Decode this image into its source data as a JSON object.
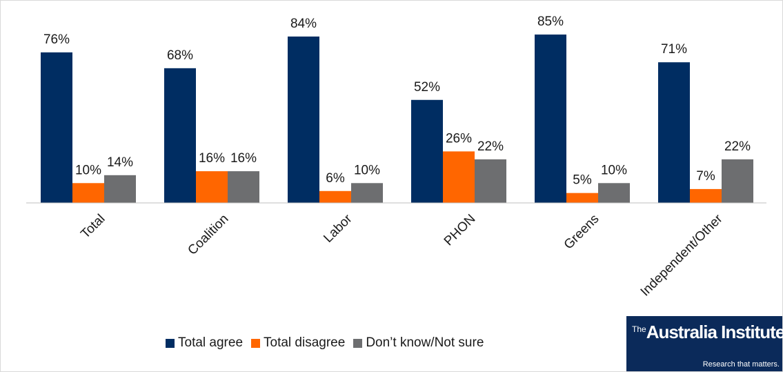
{
  "colors": {
    "agree": "#002d62",
    "disagree": "#ff6600",
    "dontknow": "#6d6e70",
    "axis": "#bfbfbf",
    "logo_bg": "#0b2a5a"
  },
  "chart_data": {
    "type": "bar",
    "title": "",
    "xlabel": "",
    "ylabel": "",
    "ylim": [
      0,
      100
    ],
    "grid": false,
    "legend_position": "bottom",
    "categories": [
      "Total",
      "Coalition",
      "Labor",
      "PHON",
      "Greens",
      "Independent/Other"
    ],
    "series": [
      {
        "name": "Total agree",
        "values": [
          76,
          68,
          84,
          52,
          85,
          71
        ],
        "labels": [
          "76%",
          "68%",
          "84%",
          "52%",
          "85%",
          "71%"
        ]
      },
      {
        "name": "Total disagree",
        "values": [
          10,
          16,
          6,
          26,
          5,
          7
        ],
        "labels": [
          "10%",
          "16%",
          "6%",
          "26%",
          "5%",
          "7%"
        ]
      },
      {
        "name": "Don’t know/Not sure",
        "values": [
          14,
          16,
          10,
          22,
          10,
          22
        ],
        "labels": [
          "14%",
          "16%",
          "10%",
          "22%",
          "10%",
          "22%"
        ]
      }
    ]
  },
  "legend": {
    "items": [
      "Total agree",
      "Total disagree",
      "Don’t know/Not sure"
    ]
  },
  "logo": {
    "prefix": "The",
    "name": "Australia Institute",
    "tagline": "Research that matters."
  }
}
